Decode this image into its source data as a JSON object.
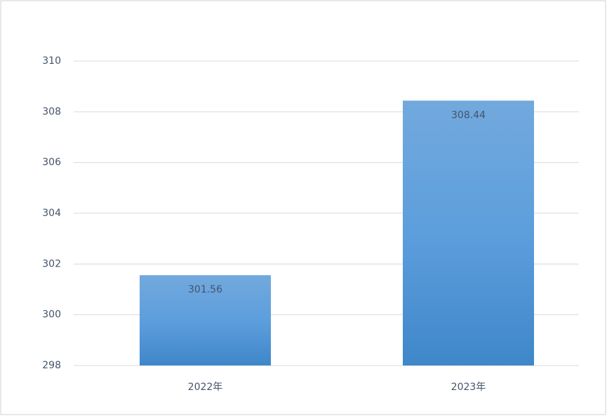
{
  "chart_data": {
    "type": "bar",
    "categories": [
      "2022年",
      "2023年"
    ],
    "values": [
      301.56,
      308.44
    ],
    "color": "#5b9bd5",
    "ylim": [
      298,
      310
    ],
    "yticks": [
      298,
      300,
      302,
      304,
      306,
      308,
      310
    ],
    "grid": true
  }
}
